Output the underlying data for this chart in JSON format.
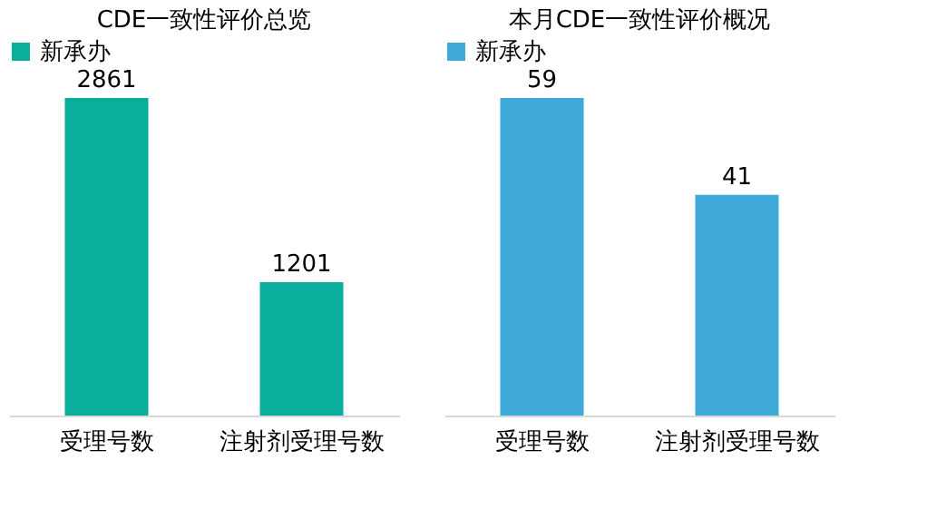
{
  "chart_data": [
    {
      "type": "bar",
      "title": "CDE一致性评价总览",
      "categories": [
        "受理号数",
        "注射剂受理号数"
      ],
      "series": [
        {
          "name": "新承办",
          "color": "#0aae9c",
          "values": [
            2861,
            1201
          ]
        }
      ],
      "data_labels": true,
      "legend": "top",
      "grid": false
    },
    {
      "type": "bar",
      "title": "本月CDE一致性评价概况",
      "categories": [
        "受理号数",
        "注射剂受理号数"
      ],
      "series": [
        {
          "name": "新承办",
          "color": "#3fa9d8",
          "values": [
            59,
            41
          ]
        }
      ],
      "data_labels": true,
      "legend": "top",
      "grid": false
    }
  ]
}
